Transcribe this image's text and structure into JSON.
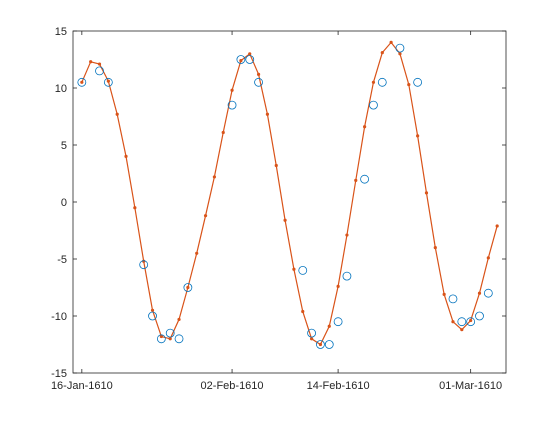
{
  "chart_data": {
    "type": "line",
    "title": "",
    "xlabel": "",
    "ylabel": "",
    "x_axis": {
      "type": "date",
      "range": [
        "1610-01-15",
        "1610-03-05"
      ],
      "ticks": [
        {
          "date": "1610-01-16",
          "label": "16-Jan-1610"
        },
        {
          "date": "1610-02-02",
          "label": "02-Feb-1610"
        },
        {
          "date": "1610-02-14",
          "label": "14-Feb-1610"
        },
        {
          "date": "1610-03-01",
          "label": "01-Mar-1610"
        }
      ]
    },
    "y_axis": {
      "range": [
        -15,
        15
      ],
      "ticks": [
        {
          "value": 15,
          "label": "15"
        },
        {
          "value": 10,
          "label": "10"
        },
        {
          "value": 5,
          "label": "5"
        },
        {
          "value": 0,
          "label": "0"
        },
        {
          "value": -5,
          "label": "-5"
        },
        {
          "value": -10,
          "label": "-10"
        },
        {
          "value": -15,
          "label": "-15"
        }
      ]
    },
    "grid": false,
    "legend": "none",
    "series": [
      {
        "style": "markers",
        "marker": "open-circle",
        "color": "#0072BD",
        "points": [
          {
            "x": "1610-01-16",
            "y": 10.5
          },
          {
            "x": "1610-01-18",
            "y": 11.5
          },
          {
            "x": "1610-01-19",
            "y": 10.5
          },
          {
            "x": "1610-01-23",
            "y": -5.5
          },
          {
            "x": "1610-01-24",
            "y": -10.0
          },
          {
            "x": "1610-01-25",
            "y": -12.0
          },
          {
            "x": "1610-01-26",
            "y": -11.5
          },
          {
            "x": "1610-01-27",
            "y": -12.0
          },
          {
            "x": "1610-01-28",
            "y": -7.5
          },
          {
            "x": "1610-02-02",
            "y": 8.5
          },
          {
            "x": "1610-02-03",
            "y": 12.5
          },
          {
            "x": "1610-02-04",
            "y": 12.5
          },
          {
            "x": "1610-02-05",
            "y": 10.5
          },
          {
            "x": "1610-02-10",
            "y": -6.0
          },
          {
            "x": "1610-02-11",
            "y": -11.5
          },
          {
            "x": "1610-02-12",
            "y": -12.5
          },
          {
            "x": "1610-02-13",
            "y": -12.5
          },
          {
            "x": "1610-02-14",
            "y": -10.5
          },
          {
            "x": "1610-02-15",
            "y": -6.5
          },
          {
            "x": "1610-02-17",
            "y": 2.0
          },
          {
            "x": "1610-02-18",
            "y": 8.5
          },
          {
            "x": "1610-02-19",
            "y": 10.5
          },
          {
            "x": "1610-02-21",
            "y": 13.5
          },
          {
            "x": "1610-02-23",
            "y": 10.5
          },
          {
            "x": "1610-02-27",
            "y": -8.5
          },
          {
            "x": "1610-02-28",
            "y": -10.5
          },
          {
            "x": "1610-03-01",
            "y": -10.5
          },
          {
            "x": "1610-03-02",
            "y": -10.0
          },
          {
            "x": "1610-03-03",
            "y": -8.0
          }
        ]
      },
      {
        "style": "line-with-dots",
        "color": "#D95319",
        "points": [
          {
            "x": "1610-01-16",
            "y": 10.5
          },
          {
            "x": "1610-01-17",
            "y": 12.3
          },
          {
            "x": "1610-01-18",
            "y": 12.1
          },
          {
            "x": "1610-01-19",
            "y": 10.6
          },
          {
            "x": "1610-01-20",
            "y": 7.7
          },
          {
            "x": "1610-01-21",
            "y": 4.0
          },
          {
            "x": "1610-01-22",
            "y": -0.5
          },
          {
            "x": "1610-01-23",
            "y": -5.2
          },
          {
            "x": "1610-01-24",
            "y": -9.5
          },
          {
            "x": "1610-01-25",
            "y": -11.8
          },
          {
            "x": "1610-01-26",
            "y": -12.0
          },
          {
            "x": "1610-01-27",
            "y": -10.3
          },
          {
            "x": "1610-01-28",
            "y": -7.5
          },
          {
            "x": "1610-01-29",
            "y": -4.5
          },
          {
            "x": "1610-01-30",
            "y": -1.2
          },
          {
            "x": "1610-01-31",
            "y": 2.2
          },
          {
            "x": "1610-02-01",
            "y": 6.1
          },
          {
            "x": "1610-02-02",
            "y": 9.8
          },
          {
            "x": "1610-02-03",
            "y": 12.4
          },
          {
            "x": "1610-02-04",
            "y": 13.0
          },
          {
            "x": "1610-02-05",
            "y": 11.2
          },
          {
            "x": "1610-02-06",
            "y": 7.7
          },
          {
            "x": "1610-02-07",
            "y": 3.2
          },
          {
            "x": "1610-02-08",
            "y": -1.6
          },
          {
            "x": "1610-02-09",
            "y": -5.9
          },
          {
            "x": "1610-02-10",
            "y": -9.6
          },
          {
            "x": "1610-02-11",
            "y": -12.0
          },
          {
            "x": "1610-02-12",
            "y": -12.5
          },
          {
            "x": "1610-02-13",
            "y": -10.9
          },
          {
            "x": "1610-02-14",
            "y": -7.4
          },
          {
            "x": "1610-02-15",
            "y": -2.9
          },
          {
            "x": "1610-02-16",
            "y": 1.9
          },
          {
            "x": "1610-02-17",
            "y": 6.6
          },
          {
            "x": "1610-02-18",
            "y": 10.5
          },
          {
            "x": "1610-02-19",
            "y": 13.1
          },
          {
            "x": "1610-02-20",
            "y": 14.0
          },
          {
            "x": "1610-02-21",
            "y": 13.0
          },
          {
            "x": "1610-02-22",
            "y": 10.3
          },
          {
            "x": "1610-02-23",
            "y": 5.8
          },
          {
            "x": "1610-02-24",
            "y": 0.8
          },
          {
            "x": "1610-02-25",
            "y": -4.0
          },
          {
            "x": "1610-02-26",
            "y": -8.1
          },
          {
            "x": "1610-02-27",
            "y": -10.5
          },
          {
            "x": "1610-02-28",
            "y": -11.2
          },
          {
            "x": "1610-03-01",
            "y": -10.4
          },
          {
            "x": "1610-03-02",
            "y": -8.0
          },
          {
            "x": "1610-03-03",
            "y": -4.9
          },
          {
            "x": "1610-03-04",
            "y": -2.1
          }
        ]
      }
    ]
  }
}
